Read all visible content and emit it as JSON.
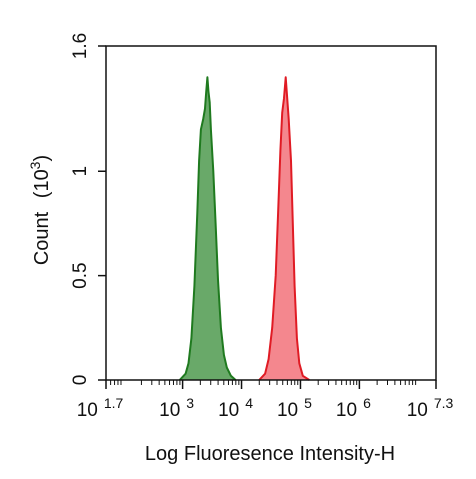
{
  "chart_data": {
    "type": "area",
    "title": "",
    "xlabel": "Log Fluoresence Intensity-H",
    "ylabel": "Count",
    "ylabel_unit": "(10",
    "ylabel_unit_exp": "3",
    "ylabel_unit_close": ")",
    "x_scale": "log",
    "xlim": [
      1.7,
      7.3
    ],
    "ylim": [
      0,
      1.6
    ],
    "x_ticks": [
      {
        "base": "10",
        "exp": "1.7",
        "log": 1.7
      },
      {
        "base": "10",
        "exp": "3",
        "log": 3
      },
      {
        "base": "10",
        "exp": "4",
        "log": 4
      },
      {
        "base": "10",
        "exp": "5",
        "log": 5
      },
      {
        "base": "10",
        "exp": "6",
        "log": 6
      },
      {
        "base": "10",
        "exp": "7.3",
        "log": 7.3
      }
    ],
    "y_ticks": [
      {
        "label": "0",
        "value": 0
      },
      {
        "label": "0.5",
        "value": 0.5
      },
      {
        "label": "1",
        "value": 1
      },
      {
        "label": "1.6",
        "value": 1.6
      }
    ],
    "grid": false,
    "series": [
      {
        "color_line": "#1f7a1f",
        "color_fill": "#4f9a4f",
        "points": [
          [
            2.95,
            0
          ],
          [
            3.05,
            0.03
          ],
          [
            3.1,
            0.08
          ],
          [
            3.15,
            0.2
          ],
          [
            3.2,
            0.45
          ],
          [
            3.25,
            0.8
          ],
          [
            3.28,
            1.05
          ],
          [
            3.31,
            1.2
          ],
          [
            3.35,
            1.25
          ],
          [
            3.38,
            1.3
          ],
          [
            3.4,
            1.38
          ],
          [
            3.42,
            1.45
          ],
          [
            3.44,
            1.38
          ],
          [
            3.46,
            1.33
          ],
          [
            3.48,
            1.2
          ],
          [
            3.52,
            1.0
          ],
          [
            3.56,
            0.75
          ],
          [
            3.6,
            0.48
          ],
          [
            3.65,
            0.25
          ],
          [
            3.7,
            0.12
          ],
          [
            3.75,
            0.06
          ],
          [
            3.82,
            0.02
          ],
          [
            3.9,
            0
          ]
        ]
      },
      {
        "color_line": "#e01b24",
        "color_fill": "#f2727a",
        "points": [
          [
            4.3,
            0
          ],
          [
            4.4,
            0.03
          ],
          [
            4.46,
            0.1
          ],
          [
            4.52,
            0.25
          ],
          [
            4.58,
            0.5
          ],
          [
            4.62,
            0.8
          ],
          [
            4.66,
            1.1
          ],
          [
            4.69,
            1.28
          ],
          [
            4.72,
            1.35
          ],
          [
            4.75,
            1.45
          ],
          [
            4.77,
            1.37
          ],
          [
            4.8,
            1.25
          ],
          [
            4.84,
            1.05
          ],
          [
            4.87,
            0.75
          ],
          [
            4.9,
            0.45
          ],
          [
            4.94,
            0.2
          ],
          [
            4.98,
            0.08
          ],
          [
            5.04,
            0.02
          ],
          [
            5.15,
            0
          ]
        ]
      }
    ]
  }
}
